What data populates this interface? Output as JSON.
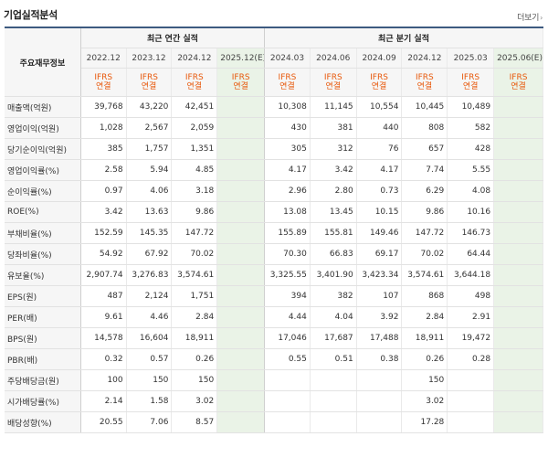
{
  "header": {
    "title": "기업실적분석",
    "more_label": "더보기",
    "more_chevron": "›"
  },
  "table": {
    "corner_label": "주요재무정보",
    "annual_header": "최근 연간 실적",
    "quarter_header": "최근 분기 실적",
    "annual_periods": [
      "2022.12",
      "2023.12",
      "2024.12",
      "2025.12(E)"
    ],
    "quarter_periods": [
      "2024.03",
      "2024.06",
      "2024.09",
      "2024.12",
      "2025.03",
      "2025.06(E)"
    ],
    "ifrs_top": "IFRS",
    "ifrs_bottom": "연결",
    "rows": [
      {
        "label": "매출액(억원)",
        "annual": [
          "39,768",
          "43,220",
          "42,451",
          ""
        ],
        "quarter": [
          "10,308",
          "11,145",
          "10,554",
          "10,445",
          "10,489",
          ""
        ]
      },
      {
        "label": "영업이익(억원)",
        "annual": [
          "1,028",
          "2,567",
          "2,059",
          ""
        ],
        "quarter": [
          "430",
          "381",
          "440",
          "808",
          "582",
          ""
        ]
      },
      {
        "label": "당기순이익(억원)",
        "annual": [
          "385",
          "1,757",
          "1,351",
          ""
        ],
        "quarter": [
          "305",
          "312",
          "76",
          "657",
          "428",
          ""
        ]
      },
      {
        "label": "영업이익률(%)",
        "annual": [
          "2.58",
          "5.94",
          "4.85",
          ""
        ],
        "quarter": [
          "4.17",
          "3.42",
          "4.17",
          "7.74",
          "5.55",
          ""
        ]
      },
      {
        "label": "순이익률(%)",
        "annual": [
          "0.97",
          "4.06",
          "3.18",
          ""
        ],
        "quarter": [
          "2.96",
          "2.80",
          "0.73",
          "6.29",
          "4.08",
          ""
        ]
      },
      {
        "label": "ROE(%)",
        "annual": [
          "3.42",
          "13.63",
          "9.86",
          ""
        ],
        "quarter": [
          "13.08",
          "13.45",
          "10.15",
          "9.86",
          "10.16",
          ""
        ]
      },
      {
        "label": "부채비율(%)",
        "annual": [
          "152.59",
          "145.35",
          "147.72",
          ""
        ],
        "quarter": [
          "155.89",
          "155.81",
          "149.46",
          "147.72",
          "146.73",
          ""
        ]
      },
      {
        "label": "당좌비율(%)",
        "annual": [
          "54.92",
          "67.92",
          "70.02",
          ""
        ],
        "quarter": [
          "70.30",
          "66.83",
          "69.17",
          "70.02",
          "64.44",
          ""
        ]
      },
      {
        "label": "유보율(%)",
        "annual": [
          "2,907.74",
          "3,276.83",
          "3,574.61",
          ""
        ],
        "quarter": [
          "3,325.55",
          "3,401.90",
          "3,423.34",
          "3,574.61",
          "3,644.18",
          ""
        ]
      },
      {
        "label": "EPS(원)",
        "annual": [
          "487",
          "2,124",
          "1,751",
          ""
        ],
        "quarter": [
          "394",
          "382",
          "107",
          "868",
          "498",
          ""
        ]
      },
      {
        "label": "PER(배)",
        "annual": [
          "9.61",
          "4.46",
          "2.84",
          ""
        ],
        "quarter": [
          "4.44",
          "4.04",
          "3.92",
          "2.84",
          "2.91",
          ""
        ]
      },
      {
        "label": "BPS(원)",
        "annual": [
          "14,578",
          "16,604",
          "18,911",
          ""
        ],
        "quarter": [
          "17,046",
          "17,687",
          "17,488",
          "18,911",
          "19,472",
          ""
        ]
      },
      {
        "label": "PBR(배)",
        "annual": [
          "0.32",
          "0.57",
          "0.26",
          ""
        ],
        "quarter": [
          "0.55",
          "0.51",
          "0.38",
          "0.26",
          "0.28",
          ""
        ]
      },
      {
        "label": "주당배당금(원)",
        "annual": [
          "100",
          "150",
          "150",
          ""
        ],
        "quarter": [
          "",
          "",
          "",
          "150",
          "",
          ""
        ]
      },
      {
        "label": "시가배당률(%)",
        "annual": [
          "2.14",
          "1.58",
          "3.02",
          ""
        ],
        "quarter": [
          "",
          "",
          "",
          "3.02",
          "",
          ""
        ]
      },
      {
        "label": "배당성향(%)",
        "annual": [
          "20.55",
          "7.06",
          "8.57",
          ""
        ],
        "quarter": [
          "",
          "",
          "",
          "17.28",
          "",
          ""
        ]
      }
    ]
  },
  "colors": {
    "accent_border": "#3d5a80",
    "ifrs_text": "#e8590c",
    "estimate_bg": "#eaf3e7"
  }
}
